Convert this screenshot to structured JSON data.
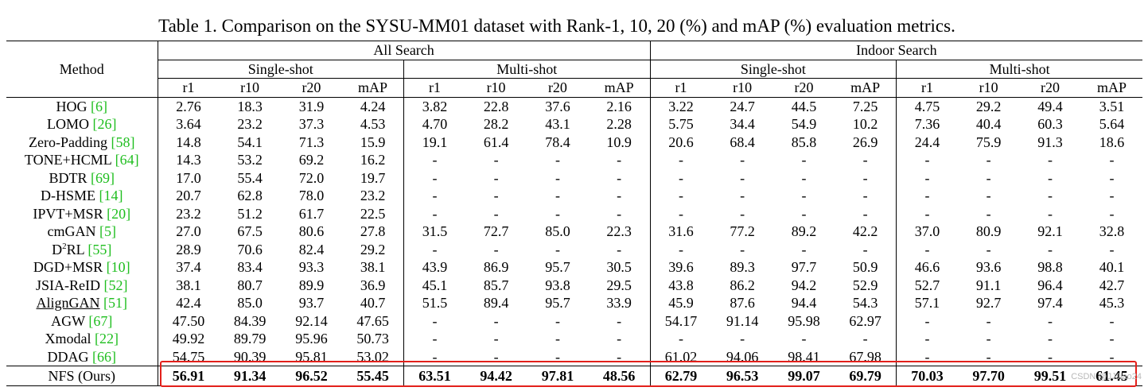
{
  "caption": "Table 1. Comparison on the SYSU-MM01 dataset with Rank-1, 10, 20 (%) and mAP (%) evaluation metrics.",
  "header": {
    "method": "Method",
    "all_search": "All Search",
    "indoor_search": "Indoor Search",
    "single_shot": "Single-shot",
    "multi_shot": "Multi-shot",
    "metrics": [
      "r1",
      "r10",
      "r20",
      "mAP",
      "r1",
      "r10",
      "r20",
      "mAP",
      "r1",
      "r10",
      "r20",
      "mAP",
      "r1",
      "r10",
      "r20",
      "mAP"
    ]
  },
  "rows": [
    {
      "method": "HOG ",
      "cite": "[6]",
      "values": [
        "2.76",
        "18.3",
        "31.9",
        "4.24",
        "3.82",
        "22.8",
        "37.6",
        "2.16",
        "3.22",
        "24.7",
        "44.5",
        "7.25",
        "4.75",
        "29.2",
        "49.4",
        "3.51"
      ]
    },
    {
      "method": "LOMO ",
      "cite": "[26]",
      "values": [
        "3.64",
        "23.2",
        "37.3",
        "4.53",
        "4.70",
        "28.2",
        "43.1",
        "2.28",
        "5.75",
        "34.4",
        "54.9",
        "10.2",
        "7.36",
        "40.4",
        "60.3",
        "5.64"
      ]
    },
    {
      "method": "Zero-Padding ",
      "cite": "[58]",
      "values": [
        "14.8",
        "54.1",
        "71.3",
        "15.9",
        "19.1",
        "61.4",
        "78.4",
        "10.9",
        "20.6",
        "68.4",
        "85.8",
        "26.9",
        "24.4",
        "75.9",
        "91.3",
        "18.6"
      ]
    },
    {
      "method": "TONE+HCML ",
      "cite": "[64]",
      "values": [
        "14.3",
        "53.2",
        "69.2",
        "16.2",
        "-",
        "-",
        "-",
        "-",
        "-",
        "-",
        "-",
        "-",
        "-",
        "-",
        "-",
        "-"
      ]
    },
    {
      "method": "BDTR ",
      "cite": "[69]",
      "values": [
        "17.0",
        "55.4",
        "72.0",
        "19.7",
        "-",
        "-",
        "-",
        "-",
        "-",
        "-",
        "-",
        "-",
        "-",
        "-",
        "-",
        "-"
      ]
    },
    {
      "method": "D-HSME ",
      "cite": "[14]",
      "values": [
        "20.7",
        "62.8",
        "78.0",
        "23.2",
        "-",
        "-",
        "-",
        "-",
        "-",
        "-",
        "-",
        "-",
        "-",
        "-",
        "-",
        "-"
      ]
    },
    {
      "method": "IPVT+MSR ",
      "cite": "[20]",
      "values": [
        "23.2",
        "51.2",
        "61.7",
        "22.5",
        "-",
        "-",
        "-",
        "-",
        "-",
        "-",
        "-",
        "-",
        "-",
        "-",
        "-",
        "-"
      ]
    },
    {
      "method": "cmGAN ",
      "cite": "[5]",
      "values": [
        "27.0",
        "67.5",
        "80.6",
        "27.8",
        "31.5",
        "72.7",
        "85.0",
        "22.3",
        "31.6",
        "77.2",
        "89.2",
        "42.2",
        "37.0",
        "80.9",
        "92.1",
        "32.8"
      ]
    },
    {
      "method": "D",
      "sup": "2",
      "method_tail": "RL ",
      "cite": "[55]",
      "values": [
        "28.9",
        "70.6",
        "82.4",
        "29.2",
        "-",
        "-",
        "-",
        "-",
        "-",
        "-",
        "-",
        "-",
        "-",
        "-",
        "-",
        "-"
      ]
    },
    {
      "method": "DGD+MSR ",
      "cite": "[10]",
      "values": [
        "37.4",
        "83.4",
        "93.3",
        "38.1",
        "43.9",
        "86.9",
        "95.7",
        "30.5",
        "39.6",
        "89.3",
        "97.7",
        "50.9",
        "46.6",
        "93.6",
        "98.8",
        "40.1"
      ]
    },
    {
      "method": "JSIA-ReID ",
      "cite": "[52]",
      "values": [
        "38.1",
        "80.7",
        "89.9",
        "36.9",
        "45.1",
        "85.7",
        "93.8",
        "29.5",
        "43.8",
        "86.2",
        "94.2",
        "52.9",
        "52.7",
        "91.1",
        "96.4",
        "42.7"
      ]
    },
    {
      "method": "AlignGAN",
      "underline": true,
      "cite": "[51]",
      "values": [
        "42.4",
        "85.0",
        "93.7",
        "40.7",
        "51.5",
        "89.4",
        "95.7",
        "33.9",
        "45.9",
        "87.6",
        "94.4",
        "54.3",
        "57.1",
        "92.7",
        "97.4",
        "45.3"
      ]
    },
    {
      "method": "AGW ",
      "cite": "[67]",
      "values": [
        "47.50",
        "84.39",
        "92.14",
        "47.65",
        "-",
        "-",
        "-",
        "-",
        "54.17",
        "91.14",
        "95.98",
        "62.97",
        "-",
        "-",
        "-",
        "-"
      ]
    },
    {
      "method": "Xmodal ",
      "cite": "[22]",
      "values": [
        "49.92",
        "89.79",
        "95.96",
        "50.73",
        "-",
        "-",
        "-",
        "-",
        "-",
        "-",
        "-",
        "-",
        "-",
        "-",
        "-",
        "-"
      ]
    },
    {
      "method": "DDAG ",
      "cite": "[66]",
      "values": [
        "54.75",
        "90.39",
        "95.81",
        "53.02",
        "-",
        "-",
        "-",
        "-",
        "61.02",
        "94.06",
        "98.41",
        "67.98",
        "-",
        "-",
        "-",
        "-"
      ]
    }
  ],
  "ours": {
    "method": "NFS (Ours)",
    "values": [
      "56.91",
      "91.34",
      "96.52",
      "55.45",
      "63.51",
      "94.42",
      "97.81",
      "48.56",
      "62.79",
      "96.53",
      "99.07",
      "69.79",
      "70.03",
      "97.70",
      "99.51",
      "61.45"
    ]
  },
  "watermark": "CSDN @JJJiao24",
  "colors": {
    "citation": "#1fbe1f",
    "highlight_box": "#e3201b"
  }
}
